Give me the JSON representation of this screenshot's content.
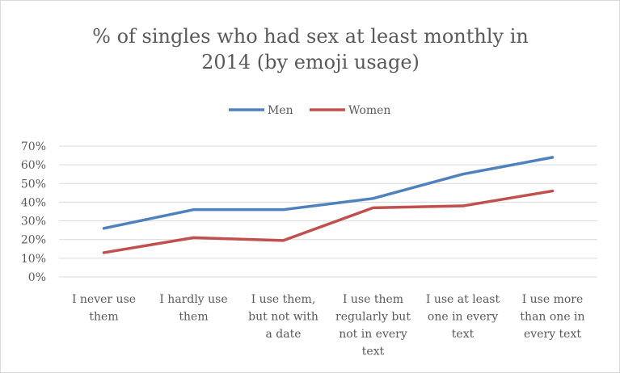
{
  "chart_data": {
    "type": "line",
    "title_lines": [
      "% of singles who had sex at least monthly in",
      "2014 (by emoji usage)"
    ],
    "categories": [
      [
        "I never use",
        "them"
      ],
      [
        "I hardly use",
        "them"
      ],
      [
        "I use them,",
        "but not with",
        "a date"
      ],
      [
        "I use them",
        "regularly but",
        "not in every",
        "text"
      ],
      [
        "I use at least",
        "one in every",
        "text"
      ],
      [
        "I use more",
        "than one in",
        "every text"
      ]
    ],
    "series": [
      {
        "name": "Men",
        "color": "#4f81bd",
        "values": [
          26,
          36,
          36,
          42,
          55,
          64
        ]
      },
      {
        "name": "Women",
        "color": "#c0504d",
        "values": [
          13,
          21,
          19.5,
          37,
          38,
          46
        ]
      }
    ],
    "y_ticks": [
      "0%",
      "10%",
      "20%",
      "30%",
      "40%",
      "50%",
      "60%",
      "70%"
    ],
    "ylim": [
      0,
      70
    ],
    "grid": true,
    "legend_position": "top"
  }
}
